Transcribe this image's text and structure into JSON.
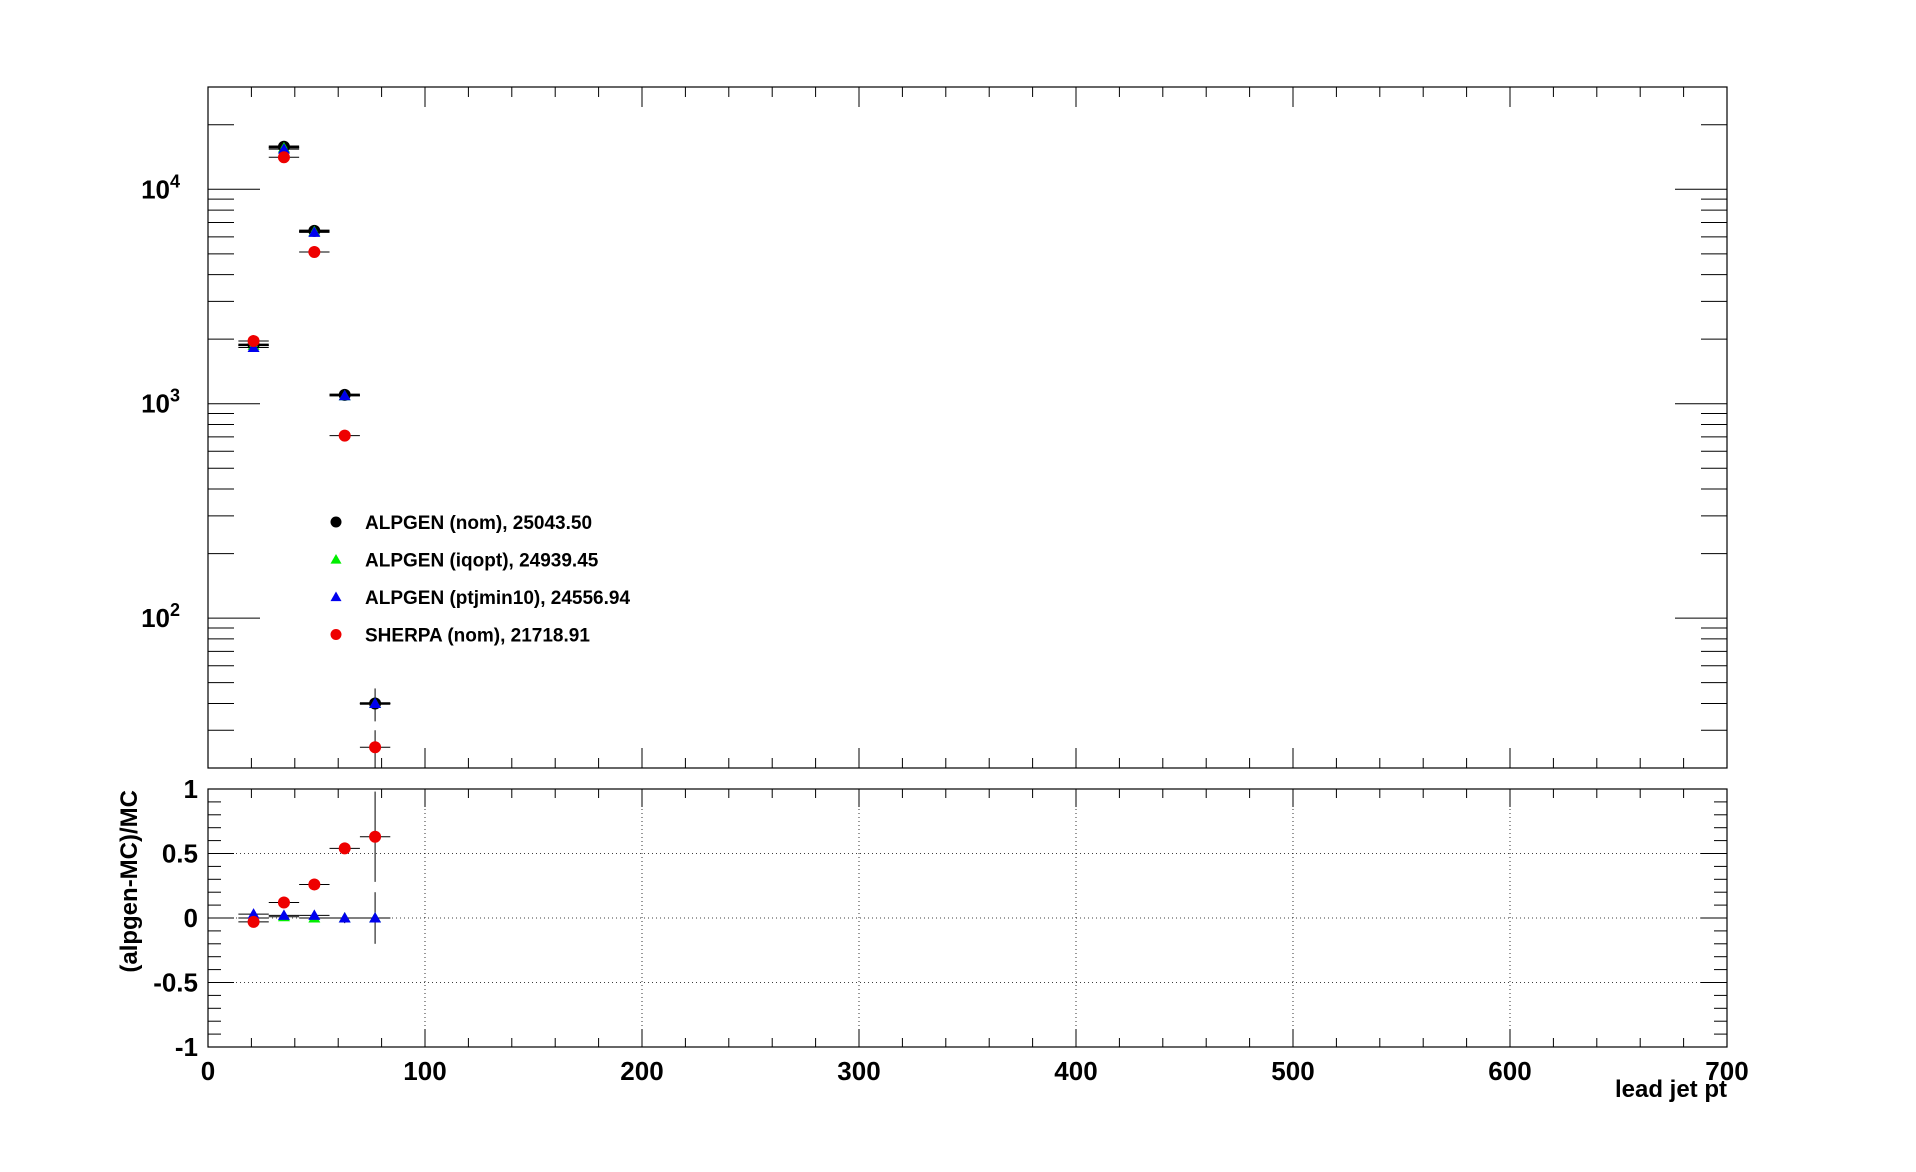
{
  "chart_data": [
    {
      "type": "scatter",
      "panel": "main",
      "yscale": "log",
      "xlim": [
        0,
        700
      ],
      "ylim": [
        20,
        30000
      ],
      "bin_width": 14,
      "x": [
        21,
        35,
        49,
        63,
        77
      ],
      "ytick_labels": [
        {
          "value": 100,
          "base": "10",
          "exp": "2"
        },
        {
          "value": 1000,
          "base": "10",
          "exp": "3"
        },
        {
          "value": 10000,
          "base": "10",
          "exp": "4"
        }
      ],
      "series": [
        {
          "name": "ALPGEN (nom)",
          "total": "25043.50",
          "color": "#000000",
          "marker": "circle",
          "values": [
            1880,
            15800,
            6400,
            1100,
            40
          ],
          "errors": [
            40,
            130,
            80,
            35,
            7
          ]
        },
        {
          "name": "ALPGEN (iqopt)",
          "total": "24939.45",
          "color": "#00ee00",
          "marker": "triangle",
          "values": [
            1870,
            15600,
            6350,
            1090,
            40
          ],
          "errors": [
            0,
            0,
            0,
            0,
            0
          ]
        },
        {
          "name": "ALPGEN (ptjmin10)",
          "total": "24556.94",
          "color": "#0000ee",
          "marker": "triangle",
          "values": [
            1830,
            15400,
            6300,
            1090,
            40
          ],
          "errors": [
            0,
            0,
            0,
            0,
            0
          ]
        },
        {
          "name": "SHERPA (nom)",
          "total": "21718.91",
          "color": "#ee0000",
          "marker": "circle",
          "values": [
            1960,
            14100,
            5100,
            710,
            25
          ],
          "errors": [
            40,
            120,
            70,
            28,
            5
          ]
        }
      ]
    },
    {
      "type": "scatter",
      "panel": "ratio",
      "xlim": [
        0,
        700
      ],
      "ylim": [
        -1,
        1
      ],
      "ylabel": "(alpgen-MC)/MC",
      "xlabel": "lead jet pt",
      "xticks": [
        0,
        100,
        200,
        300,
        400,
        500,
        600,
        700
      ],
      "yticks": [
        -1,
        -0.5,
        0,
        0.5,
        1
      ],
      "ytick_labels": [
        "-1",
        "-0.5",
        "0",
        "0.5",
        "1"
      ],
      "grid": true,
      "bin_width": 14,
      "x": [
        21,
        35,
        49,
        63,
        77
      ],
      "series": [
        {
          "name": "ALPGEN (iqopt)",
          "color": "#00ee00",
          "marker": "triangle",
          "values": [
            0.0,
            0.01,
            0.0,
            0.0,
            0.0
          ],
          "errors": [
            0,
            0,
            0,
            0,
            0
          ]
        },
        {
          "name": "ALPGEN (ptjmin10)",
          "color": "#0000ee",
          "marker": "triangle",
          "values": [
            0.03,
            0.02,
            0.02,
            0.0,
            0.0
          ],
          "errors": [
            0.03,
            0.02,
            0.02,
            0.04,
            0.2
          ]
        },
        {
          "name": "SHERPA (nom)",
          "color": "#ee0000",
          "marker": "circle",
          "values": [
            -0.03,
            0.12,
            0.26,
            0.54,
            0.63
          ],
          "errors": [
            0.03,
            0.02,
            0.02,
            0.04,
            0.35
          ]
        }
      ]
    }
  ]
}
